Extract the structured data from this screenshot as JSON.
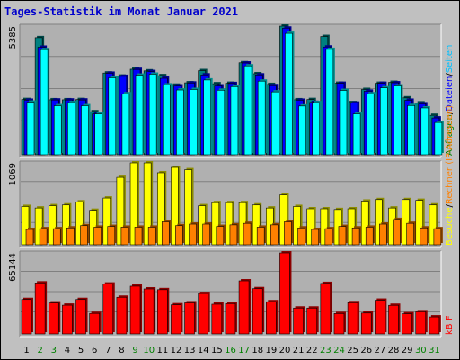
{
  "chart_data": {
    "title": "Tages-Statistik im Monat Januar 2021",
    "type": "bar",
    "x": [
      "1",
      "2",
      "3",
      "4",
      "5",
      "6",
      "7",
      "8",
      "9",
      "10",
      "11",
      "12",
      "13",
      "14",
      "15",
      "16",
      "17",
      "18",
      "19",
      "20",
      "21",
      "22",
      "23",
      "24",
      "25",
      "26",
      "27",
      "28",
      "29",
      "30",
      "31"
    ],
    "weekend_days": [
      "2",
      "3",
      "9",
      "10",
      "16",
      "17",
      "23",
      "24",
      "30",
      "31"
    ],
    "panels": [
      {
        "id": "requests",
        "ymax_label": "5385",
        "ymax": 5385,
        "side_labels": [
          {
            "text": "Anfragen",
            "color": "#008000"
          },
          {
            "text": "/",
            "color": "#000000"
          },
          {
            "text": "Dateien",
            "color": "#0000ff"
          },
          {
            "text": "/",
            "color": "#000000"
          },
          {
            "text": "Seiten",
            "color": "#00c0ff"
          }
        ],
        "series": [
          {
            "name": "Anfragen",
            "color": "#008080",
            "values": [
              2310,
              4900,
              2300,
              2300,
              2310,
              1800,
              3420,
              3290,
              3580,
              3510,
              3310,
              2910,
              3010,
              3520,
              2970,
              2990,
              3850,
              3390,
              2940,
              5385,
              2300,
              2310,
              4950,
              2990,
              2180,
              2730,
              2990,
              3030,
              2380,
              2170,
              1650
            ]
          },
          {
            "name": "Dateien",
            "color": "#0000ff",
            "values": [
              2280,
              4500,
              2290,
              2290,
              2290,
              1710,
              3410,
              3280,
              3570,
              3480,
              3200,
              2880,
              3000,
              3340,
              2880,
              2980,
              3840,
              3340,
              2890,
              5300,
              2280,
              2190,
              4510,
              2990,
              2160,
              2660,
              2990,
              3010,
              2280,
              2130,
              1540
            ]
          },
          {
            "name": "Seiten",
            "color": "#00ffff",
            "values": [
              2200,
              4400,
              2050,
              2180,
              2050,
              1710,
              3220,
              2550,
              3330,
              3370,
              2920,
              2710,
              2730,
              3130,
              2700,
              2850,
              3720,
              3080,
              2630,
              5080,
              2040,
              2180,
              4410,
              2690,
              1710,
              2550,
              2800,
              2880,
              2060,
              1960,
              1350
            ]
          }
        ]
      },
      {
        "id": "visits",
        "ymax_label": "1069",
        "ymax": 1069,
        "side_labels": [
          {
            "text": "Besuche",
            "color": "#ffff00"
          },
          {
            "text": "/",
            "color": "#000000"
          },
          {
            "text": "Rechner (IP-Adressen)",
            "color": "#ff8000"
          }
        ],
        "series": [
          {
            "name": "Besuche",
            "color": "#ffff00",
            "values": [
              500,
              480,
              510,
              520,
              560,
              450,
              610,
              880,
              1069,
              1069,
              940,
              1010,
              980,
              510,
              550,
              550,
              550,
              520,
              480,
              650,
              500,
              470,
              470,
              460,
              470,
              570,
              590,
              480,
              590,
              580,
              520
            ]
          },
          {
            "name": "Rechner (IP-Adressen)",
            "color": "#ff8000",
            "values": [
              200,
              210,
              210,
              220,
              250,
              230,
              240,
              230,
              230,
              230,
              300,
              250,
              270,
              270,
              240,
              260,
              280,
              230,
              260,
              300,
              220,
              200,
              210,
              240,
              220,
              230,
              270,
              330,
              280,
              220,
              210
            ]
          }
        ]
      },
      {
        "id": "kb",
        "ymax_label": "65144",
        "ymax": 65144,
        "side_labels": [
          {
            "text": "kB F",
            "color": "#ff0000"
          }
        ],
        "series": [
          {
            "name": "kB F",
            "color": "#ff0000",
            "values": [
              27700,
              41000,
              24900,
              23100,
              27700,
              16500,
              40100,
              29500,
              38400,
              36200,
              35600,
              23400,
              25000,
              32500,
              23900,
              24400,
              42700,
              36400,
              25900,
              65144,
              20800,
              20800,
              40600,
              16400,
              25100,
              16800,
              27100,
              23000,
              16200,
              17800,
              13700
            ]
          }
        ]
      }
    ]
  }
}
